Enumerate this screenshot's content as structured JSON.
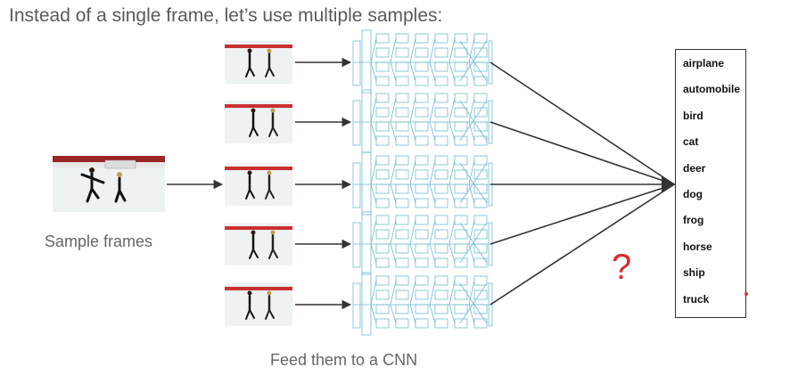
{
  "headline": "Instead of a single frame, let’s use multiple samples:",
  "sample_frames_caption": "Sample frames",
  "cnn_caption": "Feed them to a CNN",
  "question_mark": "?",
  "classes": [
    "airplane",
    "automobile",
    "bird",
    "cat",
    "deer",
    "dog",
    "frog",
    "horse",
    "ship",
    "truck"
  ],
  "colors": {
    "network_lines": "#5fb3c9",
    "arrow": "#333333",
    "accent_red": "#e0282e",
    "rink_red": "#c8302f",
    "ice": "#eef2f3"
  }
}
